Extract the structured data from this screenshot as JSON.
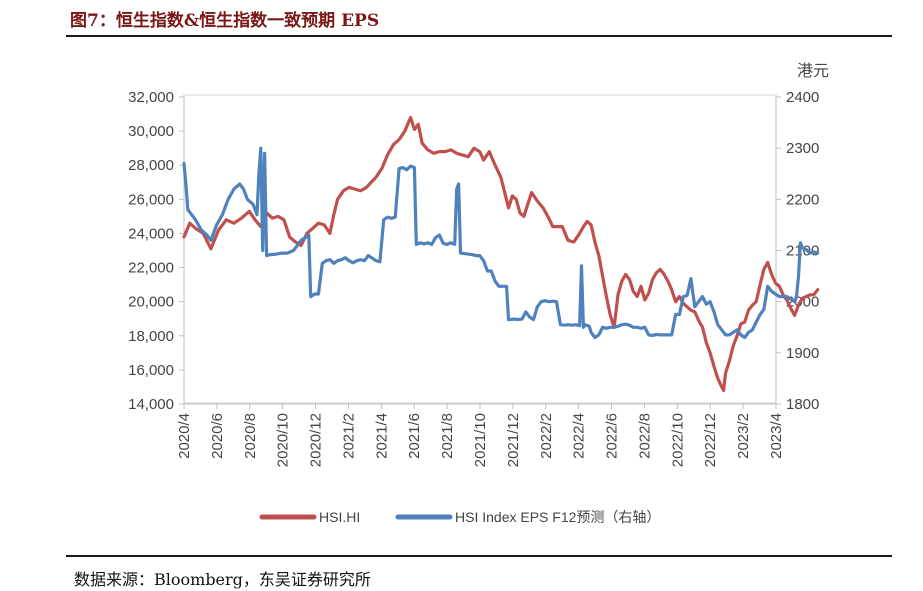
{
  "figure": {
    "title": "图7：恒生指数&恒生指数一致预期 EPS",
    "source": "数据来源：Bloomberg，东吴证券研究所"
  },
  "chart_data": {
    "type": "line",
    "title": "恒生指数&恒生指数一致预期 EPS",
    "y_left": {
      "ylim": [
        14000,
        32000
      ],
      "ticks": [
        "14,000",
        "16,000",
        "18,000",
        "20,000",
        "22,000",
        "24,000",
        "26,000",
        "28,000",
        "30,000",
        "32,000"
      ]
    },
    "y_right": {
      "ylim": [
        1800,
        2400
      ],
      "label": "港元",
      "ticks": [
        "1800",
        "1900",
        "2000",
        "2100",
        "2200",
        "2300",
        "2400"
      ]
    },
    "x_range": [
      2020.25,
      2023.333
    ],
    "x_ticks": [
      "2020/4",
      "2020/6",
      "2020/8",
      "2020/10",
      "2020/12",
      "2021/2",
      "2021/4",
      "2021/6",
      "2021/8",
      "2021/10",
      "2021/12",
      "2022/2",
      "2022/4",
      "2022/6",
      "2022/8",
      "2022/10",
      "2022/12",
      "2023/2",
      "2023/4"
    ],
    "legend": {
      "position": "bottom"
    },
    "colors": {
      "hsi": "#c0504d",
      "eps": "#4f81bd"
    },
    "series": [
      {
        "name": "HSI.HI",
        "axis": "left",
        "points": [
          [
            0.0,
            23800
          ],
          [
            0.03,
            24600
          ],
          [
            0.06,
            24300
          ],
          [
            0.1,
            24000
          ],
          [
            0.14,
            23100
          ],
          [
            0.18,
            24200
          ],
          [
            0.22,
            24800
          ],
          [
            0.26,
            24600
          ],
          [
            0.3,
            24900
          ],
          [
            0.34,
            25300
          ],
          [
            0.37,
            24800
          ],
          [
            0.4,
            24400
          ],
          [
            0.43,
            25200
          ],
          [
            0.46,
            24900
          ],
          [
            0.49,
            25000
          ],
          [
            0.52,
            24800
          ],
          [
            0.55,
            23800
          ],
          [
            0.58,
            23500
          ],
          [
            0.61,
            23300
          ],
          [
            0.64,
            24000
          ],
          [
            0.67,
            24300
          ],
          [
            0.7,
            24600
          ],
          [
            0.73,
            24500
          ],
          [
            0.76,
            24000
          ],
          [
            0.78,
            25100
          ],
          [
            0.8,
            26000
          ],
          [
            0.83,
            26500
          ],
          [
            0.86,
            26700
          ],
          [
            0.89,
            26600
          ],
          [
            0.92,
            26500
          ],
          [
            0.95,
            26700
          ],
          [
            1.0,
            27300
          ],
          [
            1.03,
            27800
          ],
          [
            1.06,
            28600
          ],
          [
            1.09,
            29200
          ],
          [
            1.12,
            29500
          ],
          [
            1.15,
            30000
          ],
          [
            1.18,
            30800
          ],
          [
            1.2,
            30100
          ],
          [
            1.22,
            30400
          ],
          [
            1.24,
            29300
          ],
          [
            1.27,
            28900
          ],
          [
            1.3,
            28700
          ],
          [
            1.33,
            28800
          ],
          [
            1.36,
            28800
          ],
          [
            1.39,
            28900
          ],
          [
            1.42,
            28700
          ],
          [
            1.45,
            28600
          ],
          [
            1.48,
            28500
          ],
          [
            1.51,
            29000
          ],
          [
            1.54,
            28800
          ],
          [
            1.56,
            28300
          ],
          [
            1.59,
            28800
          ],
          [
            1.62,
            28000
          ],
          [
            1.65,
            27300
          ],
          [
            1.67,
            26400
          ],
          [
            1.69,
            25500
          ],
          [
            1.71,
            26200
          ],
          [
            1.73,
            26000
          ],
          [
            1.75,
            25200
          ],
          [
            1.77,
            25000
          ],
          [
            1.79,
            25700
          ],
          [
            1.81,
            26400
          ],
          [
            1.84,
            25900
          ],
          [
            1.87,
            25500
          ],
          [
            1.9,
            24900
          ],
          [
            1.92,
            24400
          ],
          [
            1.94,
            24400
          ],
          [
            1.97,
            24400
          ],
          [
            2.0,
            23600
          ],
          [
            2.03,
            23500
          ],
          [
            2.06,
            24000
          ],
          [
            2.08,
            24400
          ],
          [
            2.1,
            24700
          ],
          [
            2.12,
            24500
          ],
          [
            2.14,
            23500
          ],
          [
            2.16,
            22700
          ],
          [
            2.18,
            21500
          ],
          [
            2.2,
            20300
          ],
          [
            2.22,
            19200
          ],
          [
            2.24,
            18500
          ],
          [
            2.26,
            20400
          ],
          [
            2.28,
            21200
          ],
          [
            2.3,
            21600
          ],
          [
            2.32,
            21300
          ],
          [
            2.34,
            20600
          ],
          [
            2.36,
            20300
          ],
          [
            2.38,
            20900
          ],
          [
            2.4,
            20100
          ],
          [
            2.42,
            20500
          ],
          [
            2.44,
            21300
          ],
          [
            2.46,
            21700
          ],
          [
            2.48,
            21900
          ],
          [
            2.5,
            21600
          ],
          [
            2.52,
            21200
          ],
          [
            2.54,
            20700
          ],
          [
            2.56,
            20000
          ],
          [
            2.58,
            20300
          ],
          [
            2.6,
            19900
          ],
          [
            2.62,
            19700
          ],
          [
            2.64,
            19500
          ],
          [
            2.66,
            19400
          ],
          [
            2.68,
            18900
          ],
          [
            2.7,
            18500
          ],
          [
            2.72,
            17600
          ],
          [
            2.74,
            17000
          ],
          [
            2.76,
            16200
          ],
          [
            2.78,
            15500
          ],
          [
            2.8,
            15000
          ],
          [
            2.81,
            14800
          ],
          [
            2.82,
            15800
          ],
          [
            2.84,
            16500
          ],
          [
            2.86,
            17400
          ],
          [
            2.88,
            18000
          ],
          [
            2.9,
            18700
          ],
          [
            2.92,
            18800
          ],
          [
            2.94,
            19500
          ],
          [
            2.96,
            19800
          ],
          [
            2.98,
            20000
          ],
          [
            3.0,
            21000
          ],
          [
            3.02,
            21900
          ],
          [
            3.04,
            22300
          ],
          [
            3.06,
            21600
          ],
          [
            3.08,
            21100
          ],
          [
            3.1,
            20900
          ],
          [
            3.12,
            20400
          ],
          [
            3.14,
            20100
          ],
          [
            3.16,
            19600
          ],
          [
            3.18,
            19200
          ],
          [
            3.2,
            19800
          ],
          [
            3.22,
            20200
          ],
          [
            3.24,
            20300
          ],
          [
            3.26,
            20400
          ],
          [
            3.28,
            20400
          ],
          [
            3.3,
            20700
          ]
        ]
      },
      {
        "name": "HSI Index EPS F12预测（右轴）",
        "axis": "right",
        "points": [
          [
            0.0,
            2270
          ],
          [
            0.01,
            2230
          ],
          [
            0.02,
            2180
          ],
          [
            0.04,
            2170
          ],
          [
            0.06,
            2160
          ],
          [
            0.09,
            2140
          ],
          [
            0.12,
            2130
          ],
          [
            0.14,
            2120
          ],
          [
            0.17,
            2150
          ],
          [
            0.2,
            2170
          ],
          [
            0.23,
            2200
          ],
          [
            0.26,
            2220
          ],
          [
            0.29,
            2230
          ],
          [
            0.31,
            2220
          ],
          [
            0.33,
            2200
          ],
          [
            0.36,
            2190
          ],
          [
            0.38,
            2170
          ],
          [
            0.39,
            2250
          ],
          [
            0.4,
            2300
          ],
          [
            0.41,
            2100
          ],
          [
            0.42,
            2290
          ],
          [
            0.43,
            2090
          ],
          [
            0.45,
            2092
          ],
          [
            0.48,
            2093
          ],
          [
            0.51,
            2095
          ],
          [
            0.54,
            2095
          ],
          [
            0.57,
            2100
          ],
          [
            0.59,
            2110
          ],
          [
            0.61,
            2120
          ],
          [
            0.63,
            2125
          ],
          [
            0.65,
            2130
          ],
          [
            0.66,
            2010
          ],
          [
            0.68,
            2015
          ],
          [
            0.7,
            2015
          ],
          [
            0.72,
            2075
          ],
          [
            0.74,
            2080
          ],
          [
            0.76,
            2082
          ],
          [
            0.78,
            2075
          ],
          [
            0.8,
            2080
          ],
          [
            0.82,
            2082
          ],
          [
            0.84,
            2086
          ],
          [
            0.86,
            2080
          ],
          [
            0.88,
            2076
          ],
          [
            0.9,
            2080
          ],
          [
            0.92,
            2082
          ],
          [
            0.94,
            2080
          ],
          [
            0.96,
            2090
          ],
          [
            0.98,
            2085
          ],
          [
            1.0,
            2080
          ],
          [
            1.02,
            2078
          ],
          [
            1.04,
            2160
          ],
          [
            1.06,
            2165
          ],
          [
            1.08,
            2163
          ],
          [
            1.1,
            2165
          ],
          [
            1.12,
            2260
          ],
          [
            1.14,
            2262
          ],
          [
            1.16,
            2258
          ],
          [
            1.18,
            2265
          ],
          [
            1.2,
            2262
          ],
          [
            1.21,
            2112
          ],
          [
            1.23,
            2115
          ],
          [
            1.25,
            2113
          ],
          [
            1.27,
            2115
          ],
          [
            1.29,
            2112
          ],
          [
            1.31,
            2125
          ],
          [
            1.33,
            2130
          ],
          [
            1.35,
            2114
          ],
          [
            1.37,
            2112
          ],
          [
            1.39,
            2115
          ],
          [
            1.41,
            2112
          ],
          [
            1.42,
            2220
          ],
          [
            1.43,
            2230
          ],
          [
            1.44,
            2095
          ],
          [
            1.46,
            2094
          ],
          [
            1.48,
            2093
          ],
          [
            1.5,
            2092
          ],
          [
            1.52,
            2090
          ],
          [
            1.54,
            2090
          ],
          [
            1.56,
            2080
          ],
          [
            1.58,
            2060
          ],
          [
            1.6,
            2060
          ],
          [
            1.62,
            2040
          ],
          [
            1.64,
            2030
          ],
          [
            1.66,
            2030
          ],
          [
            1.68,
            2030
          ],
          [
            1.69,
            1965
          ],
          [
            1.72,
            1966
          ],
          [
            1.74,
            1965
          ],
          [
            1.76,
            1966
          ],
          [
            1.78,
            1980
          ],
          [
            1.8,
            1970
          ],
          [
            1.82,
            1965
          ],
          [
            1.84,
            1990
          ],
          [
            1.86,
            2000
          ],
          [
            1.88,
            2002
          ],
          [
            1.9,
            2000
          ],
          [
            1.92,
            2001
          ],
          [
            1.94,
            2000
          ],
          [
            1.96,
            1955
          ],
          [
            1.98,
            1954
          ],
          [
            2.0,
            1955
          ],
          [
            2.02,
            1954
          ],
          [
            2.04,
            1955
          ],
          [
            2.06,
            1953
          ],
          [
            2.07,
            2070
          ],
          [
            2.08,
            1950
          ],
          [
            2.09,
            1955
          ],
          [
            2.11,
            1952
          ],
          [
            2.12,
            1940
          ],
          [
            2.14,
            1930
          ],
          [
            2.16,
            1935
          ],
          [
            2.18,
            1950
          ],
          [
            2.2,
            1948
          ],
          [
            2.22,
            1950
          ],
          [
            2.24,
            1950
          ],
          [
            2.26,
            1952
          ],
          [
            2.28,
            1955
          ],
          [
            2.3,
            1956
          ],
          [
            2.32,
            1954
          ],
          [
            2.34,
            1950
          ],
          [
            2.36,
            1950
          ],
          [
            2.38,
            1948
          ],
          [
            2.4,
            1950
          ],
          [
            2.42,
            1935
          ],
          [
            2.44,
            1934
          ],
          [
            2.46,
            1936
          ],
          [
            2.48,
            1935
          ],
          [
            2.5,
            1935
          ],
          [
            2.52,
            1935
          ],
          [
            2.54,
            1935
          ],
          [
            2.56,
            1975
          ],
          [
            2.58,
            1975
          ],
          [
            2.6,
            2010
          ],
          [
            2.62,
            2012
          ],
          [
            2.64,
            2045
          ],
          [
            2.66,
            1990
          ],
          [
            2.68,
            2000
          ],
          [
            2.7,
            2010
          ],
          [
            2.72,
            1995
          ],
          [
            2.74,
            2000
          ],
          [
            2.76,
            1980
          ],
          [
            2.78,
            1955
          ],
          [
            2.8,
            1945
          ],
          [
            2.82,
            1935
          ],
          [
            2.84,
            1935
          ],
          [
            2.86,
            1940
          ],
          [
            2.88,
            1945
          ],
          [
            2.9,
            1935
          ],
          [
            2.92,
            1930
          ],
          [
            2.94,
            1940
          ],
          [
            2.96,
            1945
          ],
          [
            2.98,
            1960
          ],
          [
            3.0,
            1975
          ],
          [
            3.02,
            1985
          ],
          [
            3.04,
            2030
          ],
          [
            3.06,
            2020
          ],
          [
            3.08,
            2015
          ],
          [
            3.1,
            2010
          ],
          [
            3.12,
            2010
          ],
          [
            3.14,
            2010
          ],
          [
            3.16,
            2005
          ],
          [
            3.18,
            2000
          ],
          [
            3.19,
            2010
          ],
          [
            3.2,
            2050
          ],
          [
            3.21,
            2115
          ],
          [
            3.22,
            2105
          ],
          [
            3.24,
            2102
          ],
          [
            3.26,
            2095
          ],
          [
            3.28,
            2097
          ],
          [
            3.3,
            2095
          ]
        ]
      }
    ]
  }
}
